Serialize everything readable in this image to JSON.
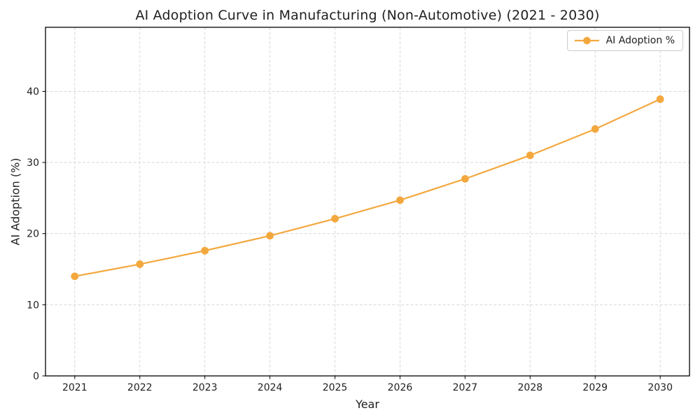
{
  "colors": {
    "line": "#F3A83E",
    "grid": "#D8D8D8",
    "spine": "#000000",
    "text": "#1F1F1F",
    "legend_border": "#CCCCCC",
    "background": "#FFFFFF"
  },
  "chart_data": {
    "type": "line",
    "title": "AI Adoption Curve in Manufacturing (Non-Automotive) (2021 - 2030)",
    "xlabel": "Year",
    "ylabel": "AI Adoption (%)",
    "categories": [
      "2021",
      "2022",
      "2023",
      "2024",
      "2025",
      "2026",
      "2027",
      "2028",
      "2029",
      "2030"
    ],
    "series": [
      {
        "name": "AI Adoption %",
        "values": [
          14.0,
          15.7,
          17.6,
          19.7,
          22.1,
          24.7,
          27.7,
          31.0,
          34.7,
          38.9
        ],
        "color": "#F3A83E",
        "marker": "circle"
      }
    ],
    "ylim": [
      0,
      49
    ],
    "yticks": [
      0,
      10,
      20,
      30,
      40
    ],
    "grid": true,
    "grid_style": "dashed",
    "legend_position": "upper-right"
  }
}
